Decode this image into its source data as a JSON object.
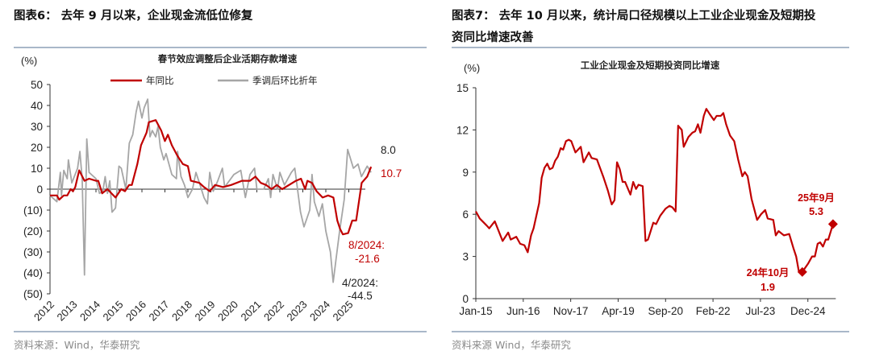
{
  "left": {
    "title": "图表6：  去年 9 月以来，企业现金流低位修复",
    "source": "资料来源：Wind，华泰研究"
  },
  "right": {
    "title_line1": "图表7：  去年 10 月以来，统计局口径规模以上工业企业现金及短期投",
    "title_line2": "资同比增速改善",
    "source": "资料来源 Wind，华泰研究"
  },
  "chart_data": [
    {
      "type": "line",
      "title": "春节效应调整后企业活期存款增速",
      "ylabel": "(%)",
      "ylim": [
        -50,
        50
      ],
      "yticks": [
        50,
        40,
        30,
        20,
        10,
        0,
        -10,
        -20,
        -30,
        -40,
        -50
      ],
      "ytick_labels": [
        "50",
        "40",
        "30",
        "20",
        "10",
        "0",
        "(10)",
        "(20)",
        "(30)",
        "(40)",
        "(50)"
      ],
      "xlim": [
        2012,
        2026
      ],
      "xtick_labels": [
        "2012",
        "2013",
        "2014",
        "2015",
        "2016",
        "2017",
        "2018",
        "2019",
        "2020",
        "2021",
        "2022",
        "2023",
        "2024",
        "2025"
      ],
      "legend_placement": "top",
      "series": [
        {
          "name": "年同比",
          "color": "#c00000",
          "x": [
            2012.0,
            2012.3,
            2012.4,
            2012.6,
            2012.75,
            2012.9,
            2013.0,
            2013.1,
            2013.27,
            2013.5,
            2013.7,
            2014.0,
            2014.1,
            2014.27,
            2014.5,
            2014.85,
            2015.1,
            2015.26,
            2015.44,
            2015.56,
            2015.8,
            2015.96,
            2016.2,
            2016.3,
            2016.6,
            2016.84,
            2017.0,
            2017.13,
            2017.3,
            2017.54,
            2017.78,
            2018.0,
            2018.13,
            2018.5,
            2018.7,
            2018.95,
            2019.18,
            2019.53,
            2019.88,
            2020.35,
            2020.7,
            2020.94,
            2021.17,
            2021.4,
            2021.64,
            2021.87,
            2022.1,
            2022.7,
            2022.92,
            2023.1,
            2023.2,
            2023.4,
            2023.6,
            2023.86,
            2024.1,
            2024.33,
            2024.5,
            2024.62,
            2024.74,
            2024.97,
            2025.15,
            2025.32,
            2025.56,
            2025.8,
            2025.97
          ],
          "y": [
            -3,
            -3,
            -5,
            -3,
            -3,
            0,
            -1,
            1,
            9,
            4,
            5,
            4,
            4,
            -2,
            0,
            -4,
            0,
            -1,
            2,
            2,
            12,
            21,
            27,
            32,
            33,
            28,
            23,
            26,
            21,
            16,
            12,
            11,
            4,
            3,
            1,
            -1,
            2,
            1,
            2,
            4,
            4,
            6,
            3,
            2,
            0,
            2,
            0,
            4,
            5,
            0,
            4,
            3,
            -1,
            -4,
            -3,
            -4,
            -15,
            -19,
            -21.6,
            -21,
            -15,
            -15,
            3,
            6,
            10.7
          ]
        },
        {
          "name": "季调后环比折年",
          "color": "#a6a6a6",
          "x": [
            2012.0,
            2012.3,
            2012.45,
            2012.5,
            2012.6,
            2012.75,
            2012.8,
            2012.95,
            2013.2,
            2013.3,
            2013.4,
            2013.5,
            2013.6,
            2013.7,
            2014.0,
            2014.15,
            2014.3,
            2014.4,
            2014.5,
            2014.6,
            2014.7,
            2014.85,
            2015.0,
            2015.1,
            2015.3,
            2015.45,
            2015.6,
            2015.75,
            2015.85,
            2016.0,
            2016.1,
            2016.25,
            2016.35,
            2016.45,
            2016.6,
            2016.7,
            2016.8,
            2016.95,
            2017.05,
            2017.3,
            2017.5,
            2017.55,
            2017.7,
            2017.85,
            2018.0,
            2018.2,
            2018.35,
            2018.5,
            2018.7,
            2018.85,
            2018.95,
            2019.1,
            2019.3,
            2019.5,
            2019.6,
            2019.8,
            2020.0,
            2020.3,
            2020.5,
            2020.7,
            2020.9,
            2021.0,
            2021.3,
            2021.5,
            2021.6,
            2021.7,
            2021.9,
            2022.0,
            2022.2,
            2022.5,
            2022.65,
            2022.9,
            2023.05,
            2023.3,
            2023.4,
            2023.5,
            2023.7,
            2023.85,
            2024.0,
            2024.2,
            2024.32,
            2024.45,
            2024.6,
            2024.8,
            2024.95,
            2025.2,
            2025.4,
            2025.55,
            2025.8,
            2025.97
          ],
          "y": [
            -3,
            -6,
            8,
            -3,
            9,
            5,
            14,
            3,
            10,
            18,
            5,
            -41,
            24,
            8,
            5,
            -2,
            -1,
            6,
            -2,
            4,
            -11,
            -9,
            11,
            10,
            0,
            22,
            26,
            37,
            42,
            34,
            39,
            43,
            25,
            28,
            25,
            30,
            20,
            14,
            17,
            7,
            5,
            18,
            6,
            2,
            -4,
            0,
            8,
            3,
            -4,
            -7,
            8,
            -1,
            4,
            10,
            1,
            4,
            7,
            9,
            -4,
            7,
            10,
            0,
            0,
            5,
            -4,
            7,
            0,
            8,
            2,
            8,
            10,
            -11,
            -18,
            -10,
            7,
            -6,
            -13,
            -7,
            -20,
            -30,
            -44.5,
            -33,
            -20,
            -5,
            19,
            10,
            12,
            6,
            11,
            8
          ]
        }
      ],
      "annotations": [
        {
          "text": "8.0",
          "series": "季调后环比折年"
        },
        {
          "text": "10.7",
          "series": "年同比"
        },
        {
          "text": "8/2024:",
          "series": "年同比"
        },
        {
          "text": "-21.6",
          "series": "年同比"
        },
        {
          "text": "4/2024:",
          "series": "季调后环比折年"
        },
        {
          "text": "-44.5",
          "series": "季调后环比折年"
        }
      ]
    },
    {
      "type": "line",
      "title": "工业企业现金及短期投资同比增速",
      "ylabel": "(%)",
      "ylim": [
        0,
        15
      ],
      "yticks": [
        0,
        3,
        6,
        9,
        12,
        15
      ],
      "ytick_labels": [
        "0",
        "3",
        "6",
        "9",
        "12",
        "15"
      ],
      "x_unit": "months since Jan-15",
      "xlim": [
        0,
        129
      ],
      "xtick_positions": [
        0,
        17,
        34,
        51,
        68,
        85,
        102,
        119
      ],
      "xtick_labels": [
        "Jan-15",
        "Jun-16",
        "Nov-17",
        "Apr-19",
        "Sep-20",
        "Feb-22",
        "Jul-23",
        "Dec-24"
      ],
      "series": [
        {
          "name": "工业企业现金及短期投资同比增速",
          "color": "#c00000",
          "x": [
            0,
            1.4,
            3.9,
            4.8,
            6.8,
            9.6,
            11.6,
            12.5,
            14.5,
            15.9,
            17.4,
            18.6,
            19.8,
            20.7,
            22.7,
            23.6,
            24.6,
            25.6,
            26.5,
            27.5,
            28.4,
            29.4,
            30.4,
            31.3,
            32.3,
            33.3,
            34.2,
            35.7,
            37.6,
            38.6,
            40.5,
            41.5,
            43.4,
            45.8,
            47.3,
            48.7,
            49.7,
            50.6,
            51.6,
            52.6,
            53.5,
            55.4,
            56.4,
            57.4,
            58.3,
            59.8,
            60.8,
            61.7,
            63.6,
            64.6,
            66.1,
            68.0,
            69.4,
            70.4,
            71.6,
            72.5,
            73.8,
            74.5,
            76.2,
            77.6,
            78.6,
            79.6,
            80.5,
            81.7,
            82.6,
            83.9,
            85.3,
            86.3,
            87.8,
            88.7,
            89.7,
            91.1,
            92.6,
            94.0,
            95.5,
            96.4,
            97.4,
            98.8,
            100.8,
            102.2,
            103.7,
            104.6,
            106.6,
            107.5,
            108.5,
            110.4,
            112.3,
            113.8,
            114.8,
            115.7,
            117,
            119.1,
            120.5,
            121.5,
            122.5,
            123.4,
            124.4,
            125.4,
            126.3,
            128
          ],
          "y": [
            6.2,
            5.7,
            5.2,
            5.0,
            5.5,
            4.1,
            4.7,
            4.2,
            4.4,
            3.9,
            3.8,
            3.3,
            4.5,
            5.0,
            6.8,
            8.6,
            9.3,
            9.6,
            9.2,
            9.3,
            9.8,
            10.1,
            10.7,
            10.6,
            11.2,
            11.3,
            11.2,
            10.4,
            10.8,
            9.7,
            10.4,
            10.0,
            9.9,
            8.6,
            7.7,
            6.7,
            7.0,
            9.7,
            9.2,
            8.3,
            8.3,
            7.4,
            8.3,
            7.8,
            8.1,
            8.0,
            4.1,
            4.2,
            5.4,
            5.3,
            5.9,
            6.4,
            6.6,
            6.5,
            6.2,
            12.3,
            12.0,
            10.8,
            11.5,
            11.8,
            11.9,
            12.4,
            11.8,
            13.0,
            13.5,
            13.1,
            12.7,
            13.0,
            13.0,
            13.2,
            12.4,
            11.6,
            11.2,
            9.9,
            8.7,
            9.0,
            8.7,
            7.1,
            5.6,
            6.0,
            6.3,
            5.7,
            5.6,
            4.5,
            4.8,
            4.5,
            4.6,
            3.6,
            3.0,
            2.0,
            1.9,
            2.5,
            3.0,
            3.0,
            3.9,
            4.0,
            3.7,
            4.2,
            4.2,
            5.3
          ]
        }
      ],
      "annotations": [
        {
          "label": "25年9月",
          "value": "5.3",
          "x": 128,
          "y": 5.3
        },
        {
          "label": "24年10月",
          "value": "1.9",
          "x": 117,
          "y": 1.9
        }
      ]
    }
  ]
}
